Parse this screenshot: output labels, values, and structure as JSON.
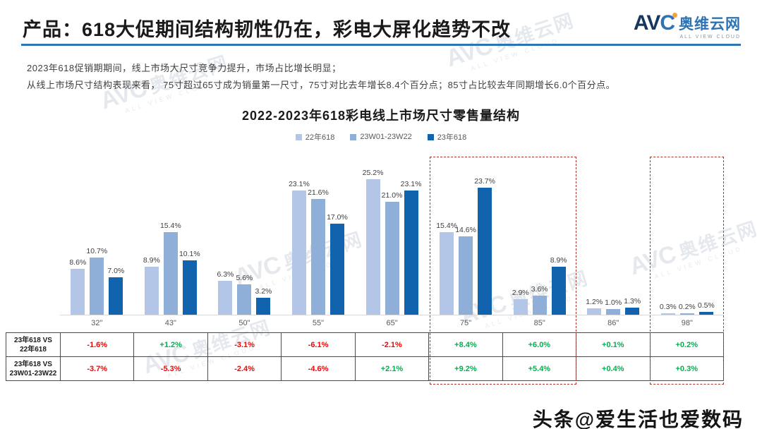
{
  "header": {
    "title": "产品：618大促期间结构韧性仍在，彩电大屏化趋势不改",
    "logo": {
      "avc_av": "AV",
      "avc_c": "C",
      "name": "奥维云网",
      "sub": "ALL VIEW CLOUD"
    }
  },
  "intro": {
    "line1": "2023年618促销期期间，线上市场大尺寸竞争力提升，市场占比增长明显；",
    "line2": "从线上市场尺寸结构表现来看， 75寸超过65寸成为销量第一尺寸，75寸对比去年增长8.4个百分点；85寸占比较去年同期增长6.0个百分点。"
  },
  "chart_data": {
    "type": "bar",
    "title": "2022-2023年618彩电线上市场尺寸零售量结构",
    "categories": [
      "32\"",
      "43\"",
      "50\"",
      "55\"",
      "65\"",
      "75\"",
      "85\"",
      "86\"",
      "98\""
    ],
    "series": [
      {
        "name": "22年618",
        "color": "#b3c6e7",
        "values": [
          8.6,
          8.9,
          6.3,
          23.1,
          25.2,
          15.4,
          2.9,
          1.2,
          0.3
        ]
      },
      {
        "name": "23W01-23W22",
        "color": "#8fafd9",
        "values": [
          10.7,
          15.4,
          5.6,
          21.6,
          21.0,
          14.6,
          3.6,
          1.0,
          0.2
        ]
      },
      {
        "name": "23年618",
        "color": "#1263ae",
        "values": [
          7.0,
          10.1,
          3.2,
          17.0,
          23.1,
          23.7,
          8.9,
          1.3,
          0.5
        ]
      }
    ],
    "value_suffix": "%",
    "ylim": [
      0,
      27
    ],
    "grid": false,
    "legend_position": "top",
    "highlighted_categories": [
      "75\"",
      "85\"",
      "98\""
    ]
  },
  "table": {
    "rows": [
      {
        "label": "23年618 VS\n22年618",
        "values": [
          "-1.6%",
          "+1.2%",
          "-3.1%",
          "-6.1%",
          "-2.1%",
          "+8.4%",
          "+6.0%",
          "+0.1%",
          "+0.2%"
        ]
      },
      {
        "label": "23年618 VS\n23W01-23W22",
        "values": [
          "-3.7%",
          "-5.3%",
          "-2.4%",
          "-4.6%",
          "+2.1%",
          "+9.2%",
          "+5.4%",
          "+0.4%",
          "+0.3%"
        ]
      }
    ],
    "positive_color": "#00b050",
    "negative_color": "#ff0000"
  },
  "watermark": {
    "logo": "AVC",
    "name": "奥维云网",
    "sub": "ALL VIEW CLOUD"
  },
  "footer": {
    "credit": "头条@爱生活也爱数码"
  }
}
